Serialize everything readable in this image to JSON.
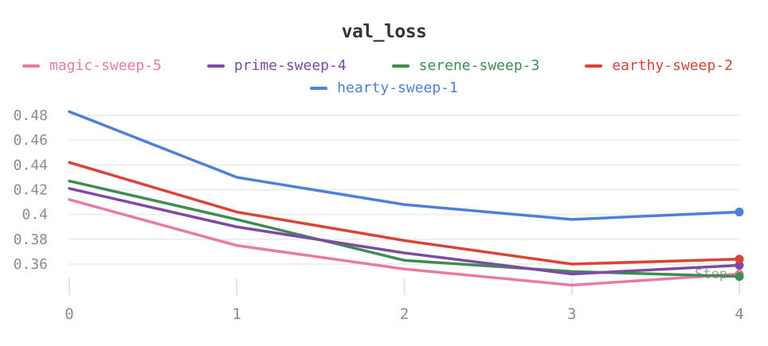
{
  "chart_data": {
    "type": "line",
    "title": "val_loss",
    "xlabel": "Step",
    "x": [
      0,
      1,
      2,
      3,
      4
    ],
    "x_tick_labels": [
      "0",
      "1",
      "2",
      "3",
      "4"
    ],
    "y_ticks": [
      0.36,
      0.38,
      0.4,
      0.42,
      0.44,
      0.46,
      0.48
    ],
    "ylim": [
      0.342,
      0.488
    ],
    "grid": "horizontal",
    "legend_position": "top",
    "series": [
      {
        "name": "magic-sweep-5",
        "color": "#e87b9f",
        "values": [
          0.412,
          0.375,
          0.356,
          0.343,
          0.352
        ]
      },
      {
        "name": "prime-sweep-4",
        "color": "#7d4aa5",
        "values": [
          0.421,
          0.39,
          0.369,
          0.352,
          0.359
        ]
      },
      {
        "name": "serene-sweep-3",
        "color": "#3e8c51",
        "values": [
          0.427,
          0.396,
          0.363,
          0.354,
          0.35
        ]
      },
      {
        "name": "earthy-sweep-2",
        "color": "#da4337",
        "values": [
          0.442,
          0.402,
          0.379,
          0.36,
          0.364
        ]
      },
      {
        "name": "hearty-sweep-1",
        "color": "#4e80d9",
        "values": [
          0.483,
          0.43,
          0.408,
          0.396,
          0.402
        ]
      }
    ]
  },
  "colors": {
    "title": "#2f353b",
    "axis_labels": "#8b8b94",
    "gridline": "#eeeeee",
    "tick": "#e3e3e3",
    "step_label": "#9da0a6"
  }
}
